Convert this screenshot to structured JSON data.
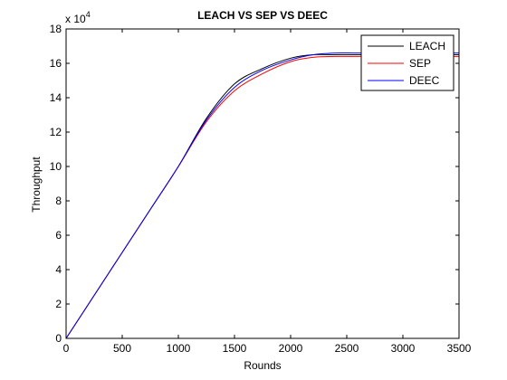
{
  "chart_data": {
    "type": "line",
    "title": "LEACH VS SEP VS DEEC",
    "xlabel": "Rounds",
    "ylabel": "Throughput",
    "y_exponent_label": "x 10",
    "y_exponent_power": "4",
    "xlim": [
      0,
      3500
    ],
    "ylim": [
      0,
      18
    ],
    "x_ticks": [
      0,
      500,
      1000,
      1500,
      2000,
      2500,
      3000,
      3500
    ],
    "y_ticks": [
      0,
      2,
      4,
      6,
      8,
      10,
      12,
      14,
      16,
      18
    ],
    "grid": false,
    "legend_position": "top-right",
    "series": [
      {
        "name": "LEACH",
        "color": "#000000",
        "x": [
          0,
          250,
          500,
          750,
          1000,
          1250,
          1500,
          1750,
          2000,
          2200,
          2400,
          2600,
          3000,
          3500
        ],
        "y": [
          0,
          2.5,
          5.0,
          7.5,
          10.0,
          12.8,
          14.8,
          15.7,
          16.3,
          16.5,
          16.5,
          16.5,
          16.5,
          16.5
        ]
      },
      {
        "name": "SEP",
        "color": "#ff0000",
        "x": [
          0,
          250,
          500,
          750,
          1000,
          1250,
          1500,
          1750,
          2000,
          2200,
          2400,
          2600,
          3000,
          3500
        ],
        "y": [
          0,
          2.5,
          5.0,
          7.5,
          10.0,
          12.6,
          14.4,
          15.4,
          16.1,
          16.35,
          16.4,
          16.4,
          16.4,
          16.4
        ]
      },
      {
        "name": "DEEC",
        "color": "#0000ff",
        "x": [
          0,
          250,
          500,
          750,
          1000,
          1250,
          1500,
          1750,
          2000,
          2200,
          2400,
          2600,
          3000,
          3500
        ],
        "y": [
          0,
          2.5,
          5.0,
          7.5,
          10.0,
          12.7,
          14.6,
          15.6,
          16.2,
          16.5,
          16.6,
          16.6,
          16.6,
          16.6
        ]
      }
    ]
  }
}
